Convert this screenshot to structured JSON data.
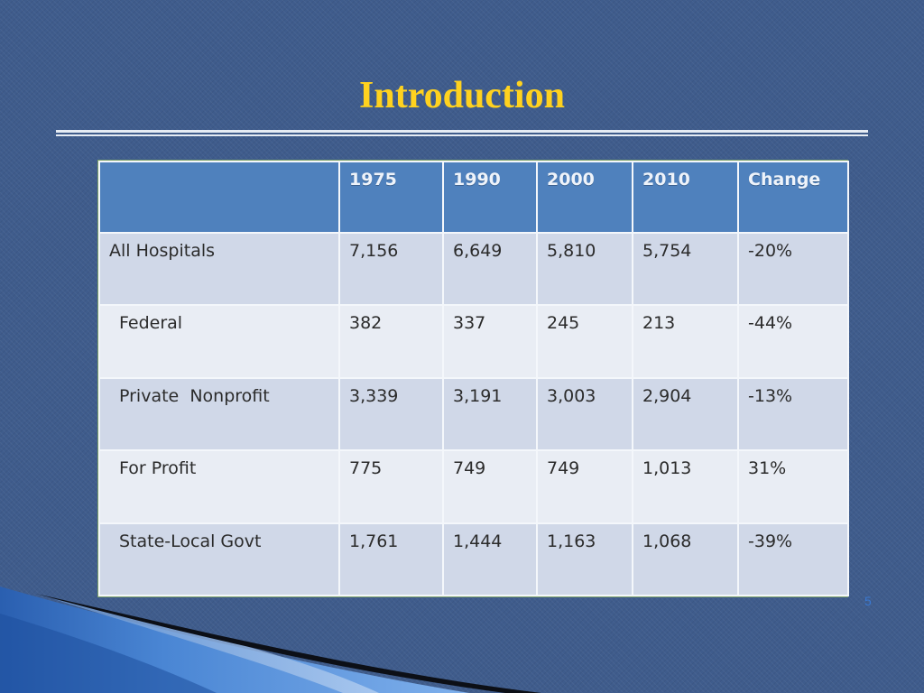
{
  "slide": {
    "title": "Introduction",
    "page_number": "5"
  },
  "table": {
    "headers": [
      "",
      "1975",
      "1990",
      "2000",
      "2010",
      "Change"
    ],
    "rows": [
      {
        "label": "All Hospitals",
        "indent": false,
        "values": [
          "7,156",
          "6,649",
          "5,810",
          "5,754",
          "-20%"
        ]
      },
      {
        "label": "Federal",
        "indent": true,
        "values": [
          "382",
          "337",
          "245",
          "213",
          "-44%"
        ]
      },
      {
        "label": "Private  Nonprofit",
        "indent": true,
        "values": [
          "3,339",
          "3,191",
          "3,003",
          "2,904",
          "-13%"
        ]
      },
      {
        "label": "For Profit",
        "indent": true,
        "values": [
          "775",
          "749",
          "749",
          "1,013",
          "31%"
        ]
      },
      {
        "label": "State-Local Govt",
        "indent": true,
        "values": [
          "1,761",
          "1,444",
          "1,163",
          "1,068",
          "-39%"
        ]
      }
    ]
  },
  "colors": {
    "background": "#3f5c8c",
    "title": "#ffd21f",
    "header_fill": "#4f81bd",
    "row_band_dark": "#d0d8e8",
    "row_band_light": "#e9edf4",
    "page_number": "#3a78d0"
  }
}
